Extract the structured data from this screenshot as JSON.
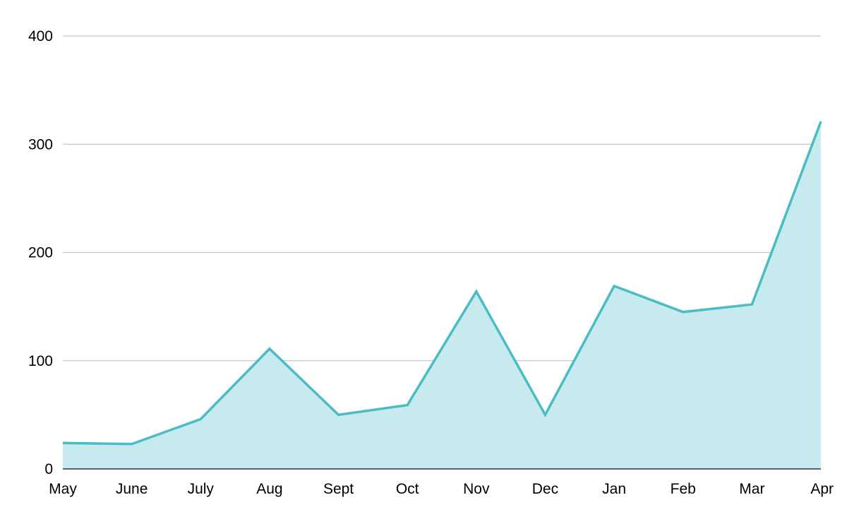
{
  "chart_data": {
    "type": "area",
    "title": "",
    "xlabel": "",
    "ylabel": "",
    "categories": [
      "May",
      "June",
      "July",
      "Aug",
      "Sept",
      "Oct",
      "Nov",
      "Dec",
      "Jan",
      "Feb",
      "Mar",
      "Apr"
    ],
    "series": [
      {
        "values": [
          24,
          23,
          46,
          111,
          50,
          59,
          164,
          50,
          169,
          145,
          152,
          321
        ]
      }
    ],
    "ylim": [
      0,
      400
    ],
    "yticks": [
      "0",
      "100",
      "200",
      "300",
      "400"
    ],
    "grid": true,
    "legend": "none",
    "colors": {
      "line": "#4ABDC4",
      "fill": "#C7EAEE",
      "grid": "#C6C6C6",
      "baseline": "#333333"
    }
  }
}
